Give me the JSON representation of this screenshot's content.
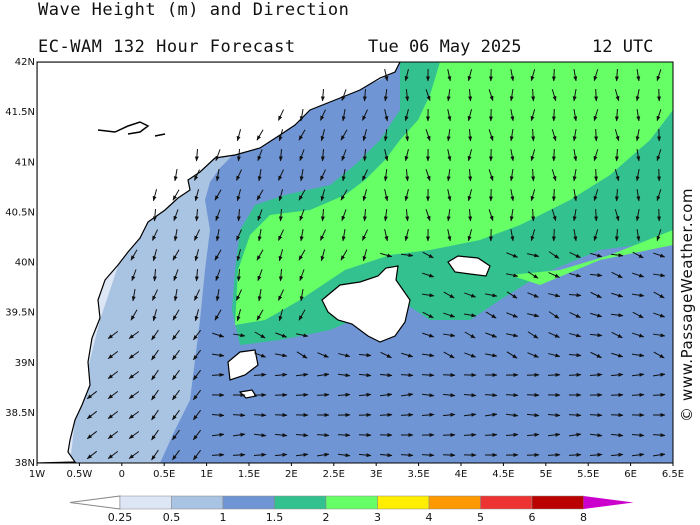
{
  "header": {
    "title": "Wave Height (m) and Direction",
    "subtitle": "EC-WAM 132 Hour Forecast",
    "date": "Tue 06 May 2025",
    "time": "12 UTC"
  },
  "axes": {
    "lon_labels": [
      "1W",
      "0.5W",
      "0",
      "0.5E",
      "1E",
      "1.5E",
      "2E",
      "2.5E",
      "3E",
      "3.5E",
      "4E",
      "4.5E",
      "5E",
      "5.5E",
      "6E",
      "6.5E"
    ],
    "lat_labels": [
      "42N",
      "41.5N",
      "41N",
      "40.5N",
      "40N",
      "39.5N",
      "39N",
      "38.5N",
      "38N"
    ],
    "lon_range": [
      -1,
      6.5
    ],
    "lat_range": [
      38,
      42
    ]
  },
  "copyright": "© www.PassageWeather.com",
  "legend": {
    "unit": "m",
    "labels": [
      "0.25",
      "0.5",
      "1",
      "1.5",
      "2",
      "3",
      "4",
      "5",
      "6",
      "8"
    ],
    "colors": [
      "#dde6f4",
      "#a9c3e3",
      "#6f95d4",
      "#33c28f",
      "#66ff66",
      "#ffee00",
      "#ff9900",
      "#ee3333",
      "#bb0000",
      "#cc00cc"
    ]
  },
  "map_colors": {
    "land": "#ffffff",
    "coast": "#000000",
    "band_0_25": "#dde6f4",
    "band_0_5": "#a9c3e3",
    "band_1": "#6f95d4",
    "band_1_5": "#33c28f",
    "band_2": "#66ff66"
  }
}
